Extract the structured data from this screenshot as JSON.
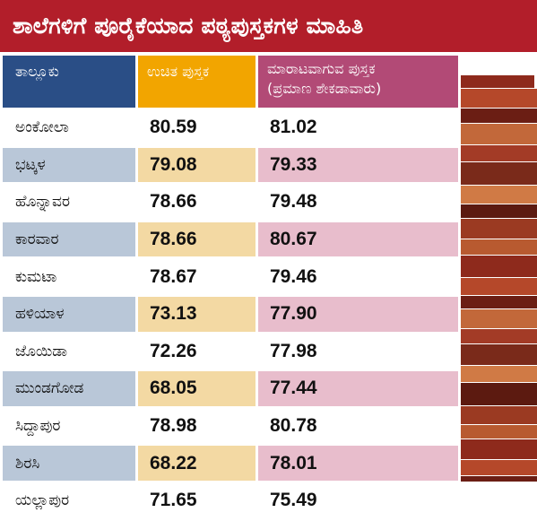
{
  "title": "ಶಾಲೆಗಳಿಗೆ ಪೂರೈಕೆಯಾದ ಪಠ್ಯಪುಸ್ತಕಗಳ ಮಾಹಿತಿ",
  "headers": {
    "taluk": "ತಾಲ್ಲೂಕು",
    "free_books": "ಉಚಿತ ಪುಸ್ತಕ",
    "sale_books_line1": "ಮಾರಾಟವಾಗುವ ಪುಸ್ತಕ",
    "sale_books_line2": "(ಪ್ರಮಾಣ ಶೇಕಡಾವಾರು)"
  },
  "rows": [
    {
      "taluk": "ಅಂಕೋಲಾ",
      "free": "80.59",
      "sale": "81.02"
    },
    {
      "taluk": "ಭಟ್ಕಳ",
      "free": "79.08",
      "sale": "79.33"
    },
    {
      "taluk": "ಹೊನ್ನಾವರ",
      "free": "78.66",
      "sale": "79.48"
    },
    {
      "taluk": "ಕಾರವಾರ",
      "free": "78.66",
      "sale": "80.67"
    },
    {
      "taluk": "ಕುಮಟಾ",
      "free": "78.67",
      "sale": "79.46"
    },
    {
      "taluk": "ಹಳಿಯಾಳ",
      "free": "73.13",
      "sale": "77.90"
    },
    {
      "taluk": "ಜೊಯಿಡಾ",
      "free": "72.26",
      "sale": "77.98"
    },
    {
      "taluk": "ಮುಂಡಗೋಡ",
      "free": "68.05",
      "sale": "77.44"
    },
    {
      "taluk": "ಸಿದ್ದಾಪುರ",
      "free": "78.98",
      "sale": "80.78"
    },
    {
      "taluk": "ಶಿರಸಿ",
      "free": "68.22",
      "sale": "78.01"
    },
    {
      "taluk": "ಯಲ್ಲಾಪುರ",
      "free": "71.65",
      "sale": "75.49"
    }
  ],
  "colors": {
    "title_bg": "#b21e2a",
    "taluk_header": "#2a4e86",
    "free_header": "#f2a500",
    "sale_header": "#b24a76",
    "taluk_stripe": "#b9c7d8",
    "free_stripe": "#f3d9a3",
    "sale_stripe": "#e8bdcc"
  },
  "images": {
    "books": "stack-of-books-photo"
  }
}
